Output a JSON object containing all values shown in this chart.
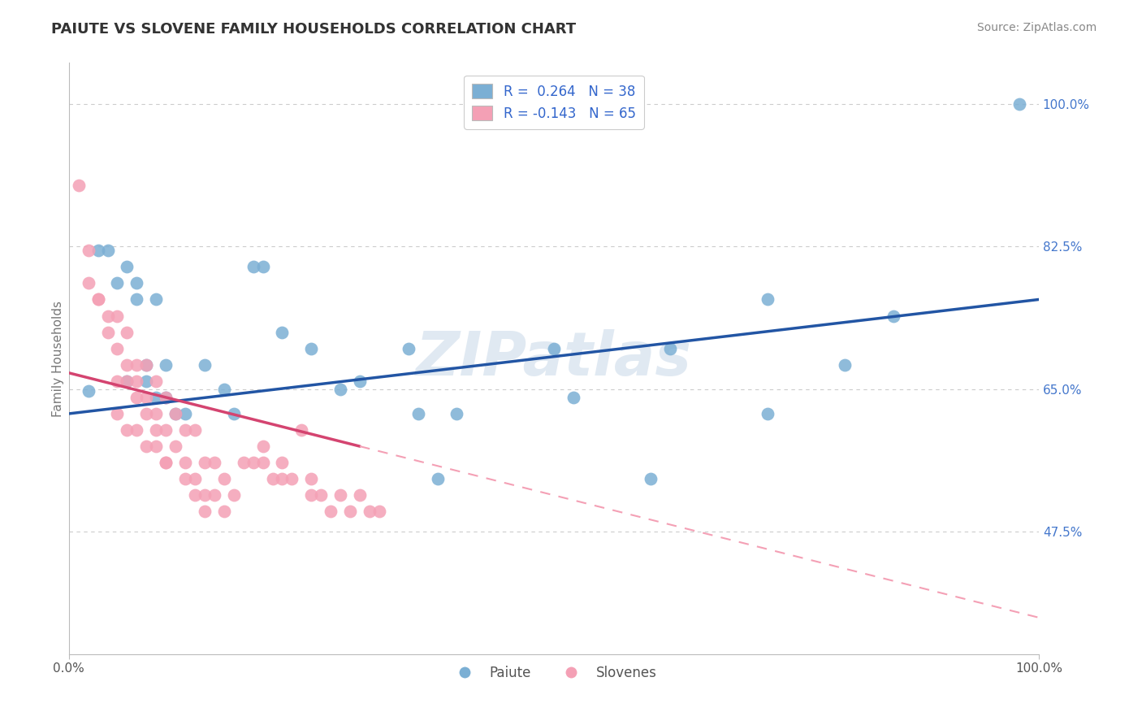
{
  "title": "PAIUTE VS SLOVENE FAMILY HOUSEHOLDS CORRELATION CHART",
  "source": "Source: ZipAtlas.com",
  "ylabel": "Family Households",
  "xlim": [
    0.0,
    1.0
  ],
  "ylim": [
    0.325,
    1.05
  ],
  "y_tick_positions_right": [
    1.0,
    0.825,
    0.65,
    0.475
  ],
  "y_tick_labels_right": [
    "100.0%",
    "82.5%",
    "65.0%",
    "47.5%"
  ],
  "legend_blue_text": "R =  0.264   N = 38",
  "legend_pink_text": "R = -0.143   N = 65",
  "paiute_color": "#7bafd4",
  "slovene_color": "#f4a0b5",
  "paiute_line_color": "#2255a4",
  "slovene_line_solid_color": "#d44470",
  "slovene_line_dash_color": "#f4a0b5",
  "watermark": "ZIPatlas",
  "watermark_color": "#c8d8e8",
  "background_color": "#ffffff",
  "grid_color": "#cccccc",
  "paiute_x": [
    0.02,
    0.03,
    0.04,
    0.05,
    0.06,
    0.06,
    0.07,
    0.07,
    0.08,
    0.08,
    0.09,
    0.09,
    0.1,
    0.1,
    0.11,
    0.12,
    0.14,
    0.16,
    0.17,
    0.19,
    0.2,
    0.22,
    0.25,
    0.28,
    0.3,
    0.35,
    0.36,
    0.38,
    0.4,
    0.5,
    0.52,
    0.6,
    0.62,
    0.72,
    0.72,
    0.8,
    0.85,
    0.98
  ],
  "paiute_y": [
    0.648,
    0.82,
    0.82,
    0.78,
    0.8,
    0.66,
    0.78,
    0.76,
    0.68,
    0.66,
    0.76,
    0.64,
    0.68,
    0.64,
    0.62,
    0.62,
    0.68,
    0.65,
    0.62,
    0.8,
    0.8,
    0.72,
    0.7,
    0.65,
    0.66,
    0.7,
    0.62,
    0.54,
    0.62,
    0.7,
    0.64,
    0.54,
    0.7,
    0.76,
    0.62,
    0.68,
    0.74,
    1.0
  ],
  "slovene_x": [
    0.01,
    0.02,
    0.02,
    0.03,
    0.03,
    0.04,
    0.04,
    0.05,
    0.05,
    0.05,
    0.06,
    0.06,
    0.06,
    0.07,
    0.07,
    0.07,
    0.08,
    0.08,
    0.08,
    0.09,
    0.09,
    0.09,
    0.1,
    0.1,
    0.1,
    0.11,
    0.11,
    0.12,
    0.12,
    0.13,
    0.13,
    0.14,
    0.14,
    0.15,
    0.16,
    0.17,
    0.18,
    0.19,
    0.2,
    0.21,
    0.22,
    0.23,
    0.24,
    0.25,
    0.26,
    0.27,
    0.28,
    0.29,
    0.3,
    0.31,
    0.32,
    0.05,
    0.06,
    0.07,
    0.08,
    0.09,
    0.1,
    0.12,
    0.13,
    0.14,
    0.15,
    0.16,
    0.2,
    0.22,
    0.25
  ],
  "slovene_y": [
    0.9,
    0.82,
    0.78,
    0.76,
    0.76,
    0.74,
    0.72,
    0.74,
    0.7,
    0.66,
    0.72,
    0.68,
    0.66,
    0.68,
    0.66,
    0.64,
    0.68,
    0.64,
    0.62,
    0.66,
    0.62,
    0.6,
    0.64,
    0.6,
    0.56,
    0.62,
    0.58,
    0.6,
    0.56,
    0.6,
    0.54,
    0.56,
    0.52,
    0.56,
    0.54,
    0.52,
    0.56,
    0.56,
    0.58,
    0.54,
    0.56,
    0.54,
    0.6,
    0.54,
    0.52,
    0.5,
    0.52,
    0.5,
    0.52,
    0.5,
    0.5,
    0.62,
    0.6,
    0.6,
    0.58,
    0.58,
    0.56,
    0.54,
    0.52,
    0.5,
    0.52,
    0.5,
    0.56,
    0.54,
    0.52
  ]
}
